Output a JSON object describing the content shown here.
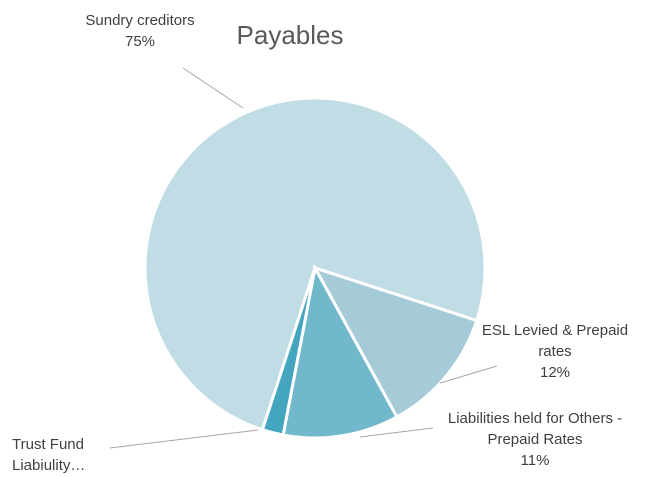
{
  "chart_data": {
    "type": "pie",
    "title": "Payables",
    "categories": [
      "Sundry creditors",
      "ESL Levied & Prepaid rates",
      "Liabilities held for Others - Prepaid Rates",
      "Trust Fund Liabiulity…"
    ],
    "values": [
      75,
      12,
      11,
      2
    ],
    "value_labels": [
      "75%",
      "12%",
      "11%",
      null
    ],
    "colors": [
      "#c0dce5",
      "#a5cbd9",
      "#72b8cc",
      "#44a5bf"
    ]
  }
}
